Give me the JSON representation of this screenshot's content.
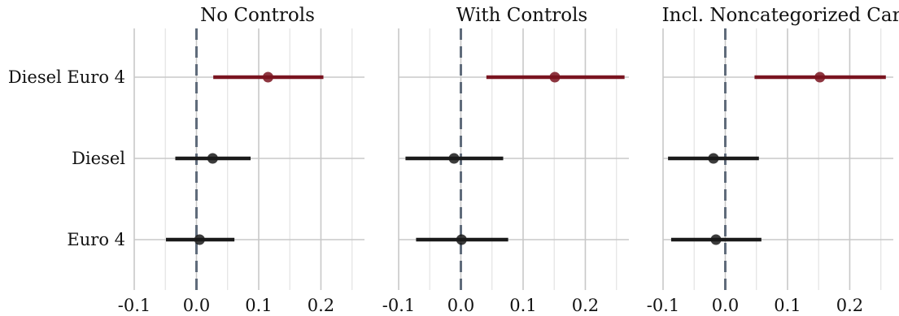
{
  "chart_data": {
    "type": "scatter",
    "subtype": "coefficient-plot-with-confidence-intervals",
    "categories": [
      "Diesel Euro 4",
      "Diesel",
      "Euro 4"
    ],
    "highlight_category": "Diesel Euro 4",
    "reference_line": 0.0,
    "xlim": [
      -0.1,
      0.27
    ],
    "xticks": [
      -0.1,
      0.0,
      0.1,
      0.2
    ],
    "xtick_labels": [
      "-0.1",
      "0.0",
      "0.1",
      "0.2"
    ],
    "grid": true,
    "panels": [
      {
        "title": "No Controls",
        "estimates": [
          {
            "term": "Diesel Euro 4",
            "estimate": 0.115,
            "ci_low": 0.027,
            "ci_high": 0.204
          },
          {
            "term": "Diesel",
            "estimate": 0.026,
            "ci_low": -0.034,
            "ci_high": 0.087
          },
          {
            "term": "Euro 4",
            "estimate": 0.005,
            "ci_low": -0.049,
            "ci_high": 0.061
          }
        ]
      },
      {
        "title": "With Controls",
        "estimates": [
          {
            "term": "Diesel Euro 4",
            "estimate": 0.151,
            "ci_low": 0.041,
            "ci_high": 0.263
          },
          {
            "term": "Diesel",
            "estimate": -0.011,
            "ci_low": -0.089,
            "ci_high": 0.068
          },
          {
            "term": "Euro 4",
            "estimate": 0.001,
            "ci_low": -0.072,
            "ci_high": 0.076
          }
        ]
      },
      {
        "title": "Incl. Noncategorized Cars",
        "estimates": [
          {
            "term": "Diesel Euro 4",
            "estimate": 0.152,
            "ci_low": 0.047,
            "ci_high": 0.258
          },
          {
            "term": "Diesel",
            "estimate": -0.019,
            "ci_low": -0.092,
            "ci_high": 0.054
          },
          {
            "term": "Euro 4",
            "estimate": -0.015,
            "ci_low": -0.087,
            "ci_high": 0.058
          }
        ]
      }
    ],
    "colors": {
      "highlight": "#7a1420",
      "default": "#1a1a1a",
      "reference_line": "#5f6b7a",
      "grid_major": "#c8c8c8",
      "grid_minor": "#e3e3e3"
    }
  }
}
